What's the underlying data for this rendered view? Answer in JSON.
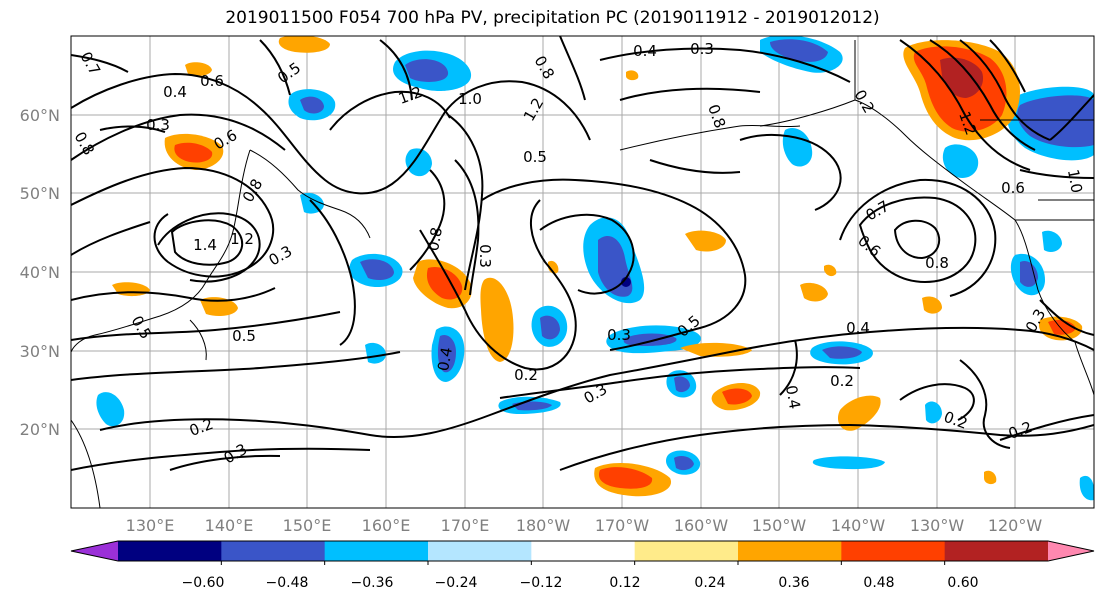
{
  "title": "2019011500 F054 700 hPa PV, precipitation PC (2019011912 - 2019012012)",
  "lat_labels": [
    "60°N",
    "50°N",
    "40°N",
    "30°N",
    "20°N"
  ],
  "lon_labels": [
    "130°E",
    "140°E",
    "150°E",
    "160°E",
    "170°E",
    "180°W",
    "170°W",
    "160°W",
    "150°W",
    "140°W",
    "130°W",
    "120°W"
  ],
  "colorbar": {
    "colors": [
      "#9b30d8",
      "#000080",
      "#3a55c8",
      "#00bfff",
      "#b4e6ff",
      "#ffffff",
      "#ffeb8a",
      "#ffa500",
      "#ff4000",
      "#b22222",
      "#ff88b0"
    ],
    "tick_labels": [
      "−0.60",
      "−0.48",
      "−0.36",
      "−0.24",
      "−0.12",
      "0.12",
      "0.24",
      "0.36",
      "0.48",
      "0.60"
    ]
  },
  "contour_labels": [
    "0.7",
    "0.6",
    "0.4",
    "0.3",
    "0.5",
    "0.8",
    "1.2",
    "1.0",
    "1.2",
    "0.4",
    "0.3",
    "0.8",
    "0.8",
    "1.2",
    "0.6",
    "0.5",
    "0.2",
    "1.0",
    "0.6",
    "1.4",
    "1.2",
    "0.3",
    "0.8",
    "0.8",
    "0.5",
    "0.3",
    "0.7",
    "0.6",
    "0.8",
    "0.4",
    "0.5",
    "0.3",
    "0.5",
    "0.4",
    "0.2",
    "0.3",
    "0.2",
    "0.3",
    "0.4",
    "0.2",
    "0.2",
    "0.2",
    "0.3"
  ]
}
